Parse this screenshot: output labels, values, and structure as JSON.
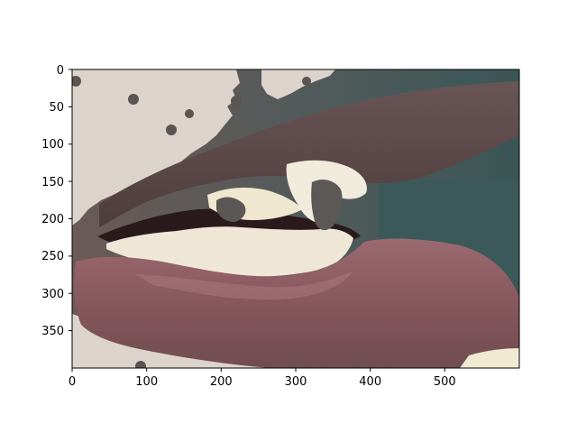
{
  "figure": {
    "description_free": true,
    "image_kind": "segmented-photo",
    "x_ticks": [
      "0",
      "100",
      "200",
      "300",
      "400",
      "500"
    ],
    "y_ticks": [
      "0",
      "50",
      "100",
      "150",
      "200",
      "250",
      "300",
      "350"
    ],
    "x_range": [
      0,
      600
    ],
    "y_range": [
      0,
      400
    ],
    "colors": {
      "skin": "#dcd2cc",
      "lip_shadow": "#5e4b4b",
      "lower_lip": "#8a5a60",
      "teeth": "#efe9d7",
      "mask_gray": "#595654",
      "background_teal": "#3c5a5a",
      "mouth_dark": "#2a1a1c"
    }
  }
}
